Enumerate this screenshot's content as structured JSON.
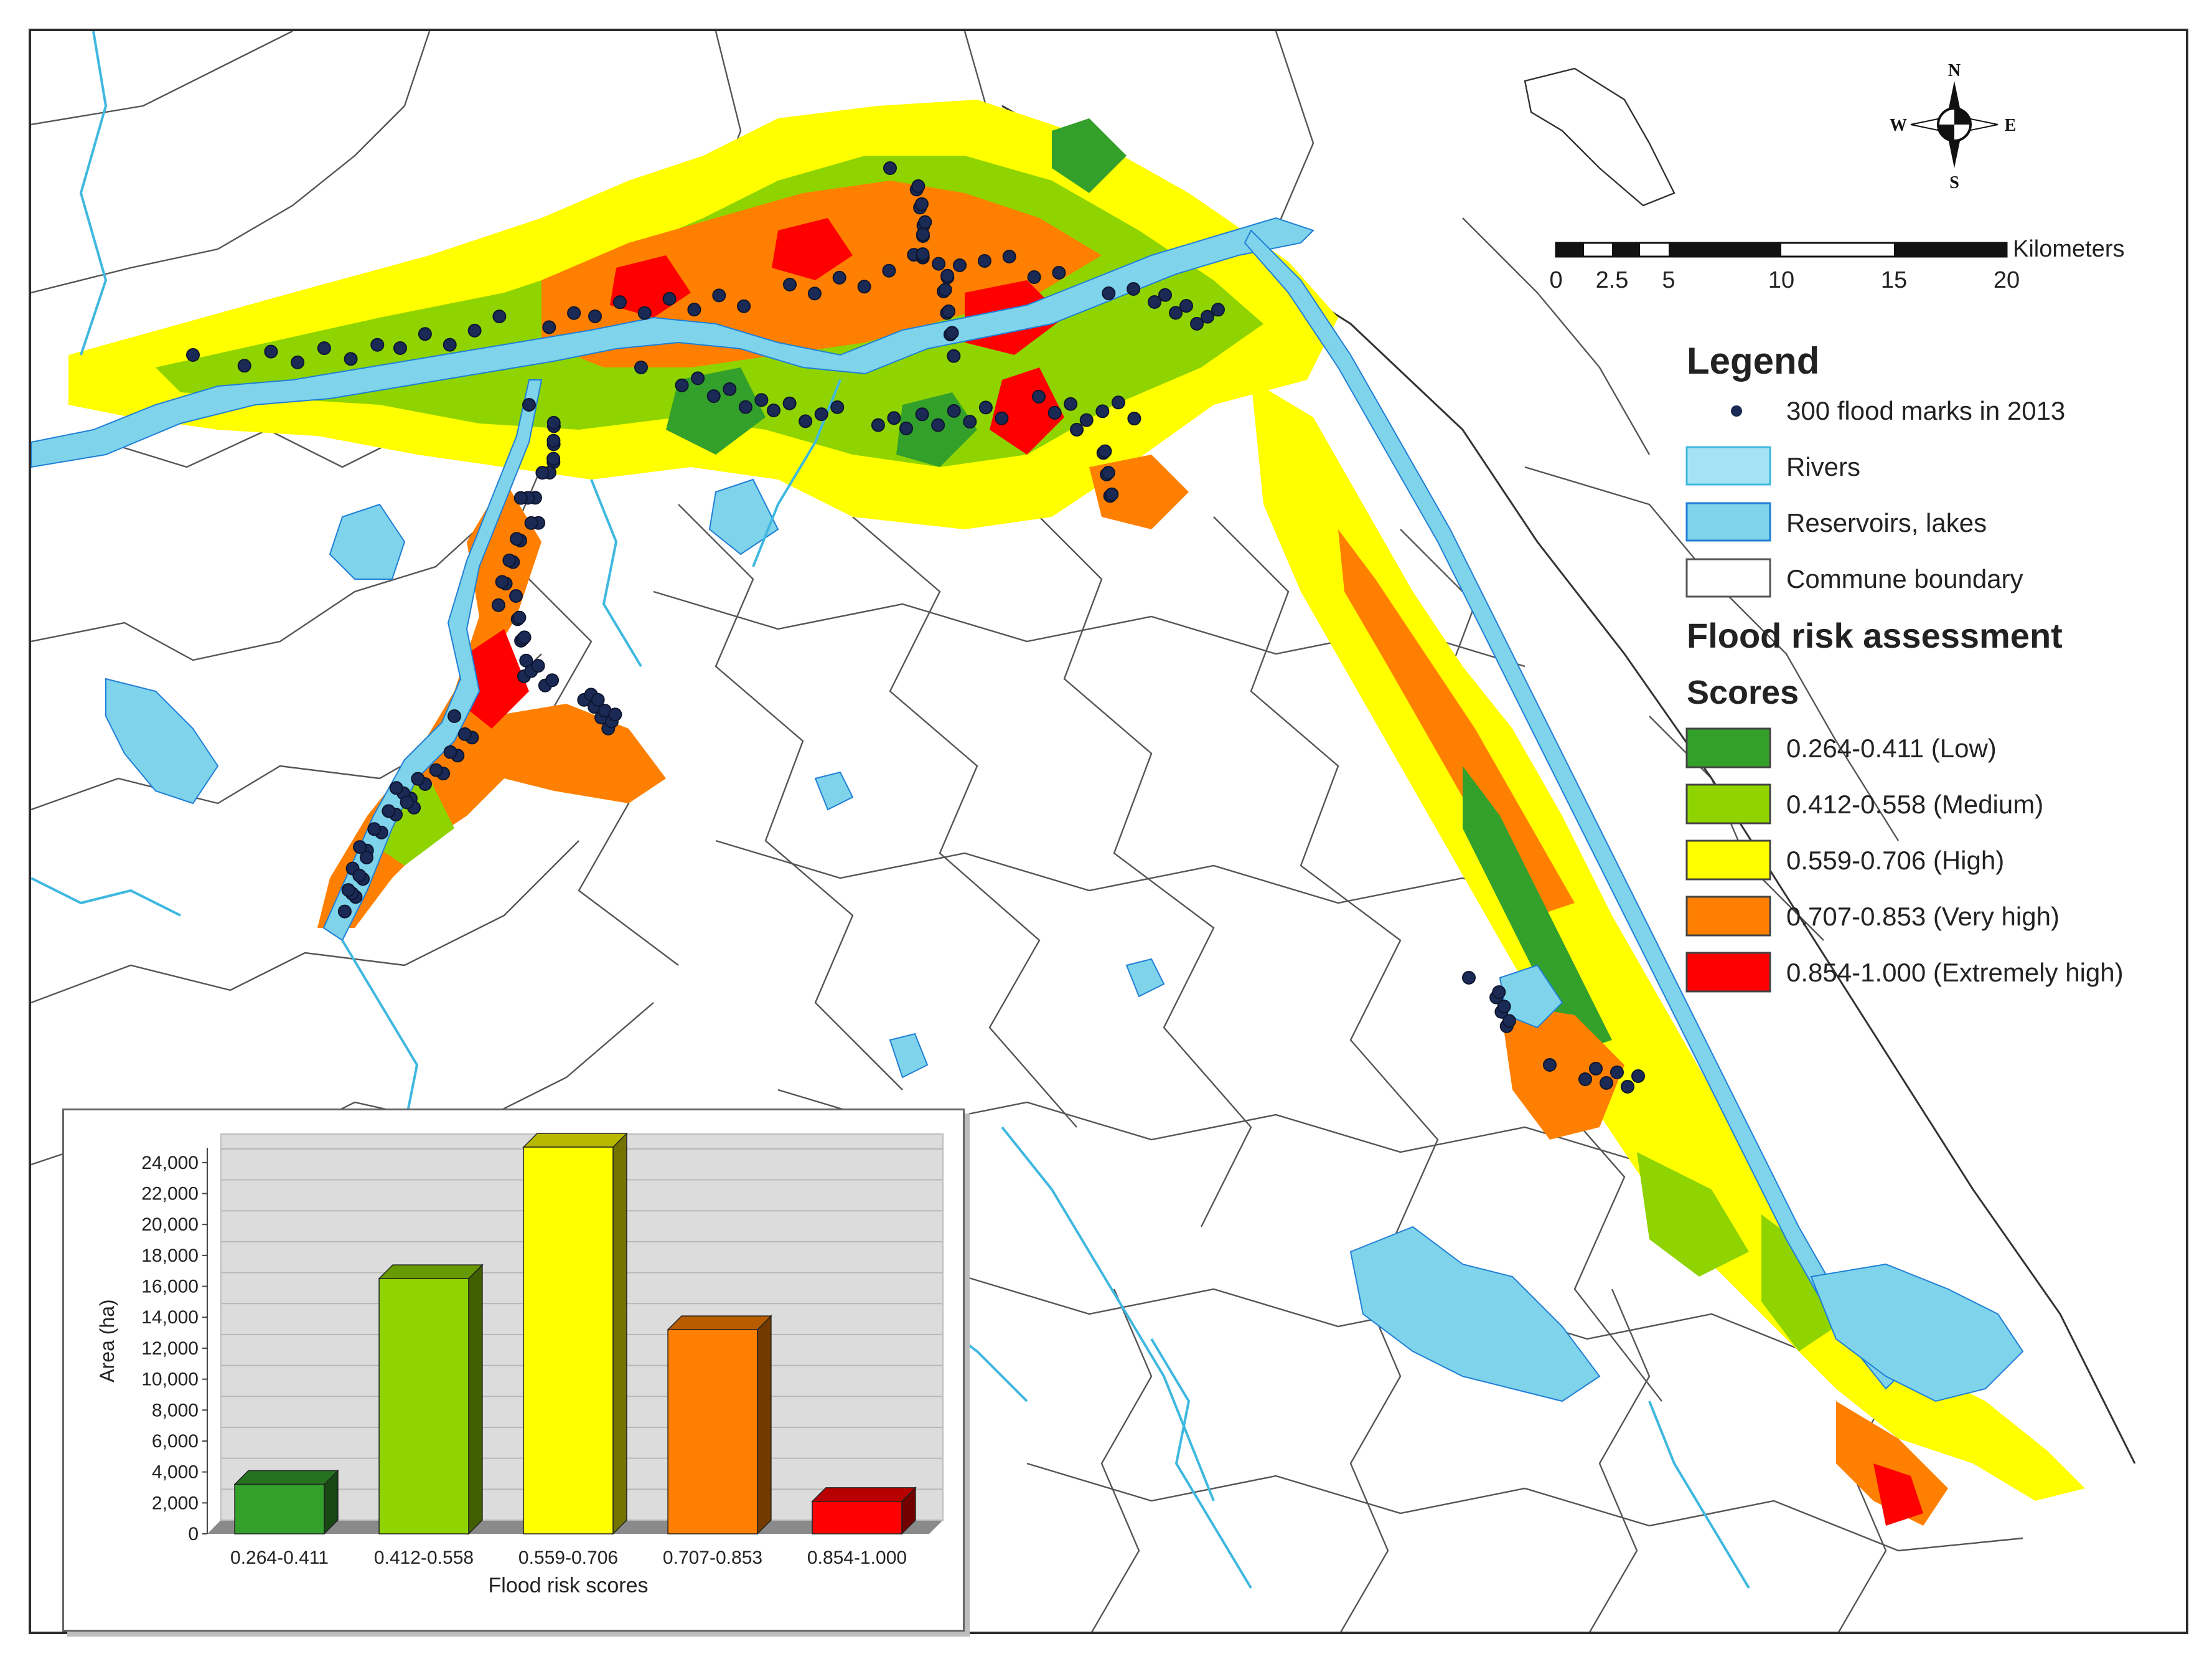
{
  "north_arrow": {
    "n": "N",
    "s": "S",
    "e": "E",
    "w": "W"
  },
  "scale_bar": {
    "unit": "Kilometers",
    "ticks": [
      "0",
      "2.5",
      "5",
      "10",
      "15",
      "20"
    ]
  },
  "legend": {
    "title": "Legend",
    "flood_marks_label": "300 flood marks in 2013",
    "rivers_label": "Rivers",
    "reservoirs_label": "Reservoirs, lakes",
    "commune_label": "Commune boundary",
    "assessment_title": "Flood risk assessment",
    "scores_title": "Scores",
    "classes": [
      {
        "label": "0.264-0.411 (Low)",
        "color": "#33a02c"
      },
      {
        "label": "0.412-0.558 (Medium)",
        "color": "#8fd400"
      },
      {
        "label": "0.559-0.706 (High)",
        "color": "#ffff00"
      },
      {
        "label": "0.707-0.853 (Very high)",
        "color": "#ff8000"
      },
      {
        "label": "0.854-1.000 (Extremely high)",
        "color": "#ff0000"
      }
    ]
  },
  "colors": {
    "water": "#7fd3ea",
    "water_stroke": "#1f7fd6",
    "boundary": "#555555",
    "flood_mark": "#1a2a55"
  },
  "chart_data": {
    "type": "bar",
    "categories": [
      "0.264-0.411",
      "0.412-0.558",
      "0.559-0.706",
      "0.707-0.853",
      "0.854-1.000"
    ],
    "values": [
      3200,
      16500,
      25000,
      13200,
      2100
    ],
    "colors": [
      "#33a02c",
      "#8fd400",
      "#ffff00",
      "#ff8000",
      "#ff0000"
    ],
    "xlabel": "Flood risk scores",
    "ylabel": "Area (ha)",
    "ylim": [
      0,
      24000
    ],
    "yticks": [
      "0",
      "2,000",
      "4,000",
      "6,000",
      "8,000",
      "10,000",
      "12,000",
      "14,000",
      "16,000",
      "18,000",
      "20,000",
      "22,000",
      "24,000"
    ],
    "grid": true
  }
}
